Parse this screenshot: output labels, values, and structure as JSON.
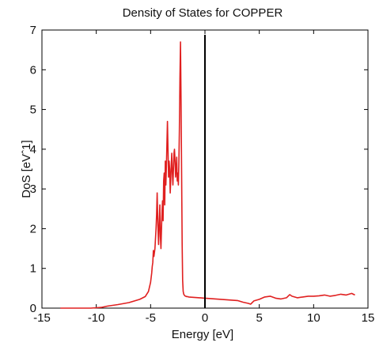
{
  "chart_data": {
    "type": "line",
    "title": "Density of States for COPPER",
    "xlabel": "Energy [eV]",
    "ylabel": "DoS [eVˆ1]",
    "xlim": [
      -15,
      15
    ],
    "ylim": [
      0,
      7
    ],
    "xticks": [
      -15,
      -10,
      -5,
      0,
      5,
      10,
      15
    ],
    "xtick_labels": [
      "-15",
      "-10",
      "-5",
      "0",
      "5",
      "10",
      "15"
    ],
    "yticks": [
      0,
      1,
      2,
      3,
      4,
      5,
      6,
      7
    ],
    "ytick_labels": [
      "0",
      "1",
      "2",
      "3",
      "4",
      "5",
      "6",
      "7"
    ],
    "grid": false,
    "reference_line": {
      "x": 0,
      "color": "#000000"
    },
    "series": [
      {
        "color": "#e02020",
        "x": [
          -13.3,
          -11.5,
          -10.5,
          -10.0,
          -9.5,
          -9.0,
          -8.0,
          -7.0,
          -6.0,
          -5.5,
          -5.2,
          -5.0,
          -4.9,
          -4.85,
          -4.8,
          -4.75,
          -4.7,
          -4.6,
          -4.5,
          -4.45,
          -4.4,
          -4.33,
          -4.27,
          -4.2,
          -4.15,
          -4.1,
          -4.05,
          -4.0,
          -3.95,
          -3.9,
          -3.85,
          -3.8,
          -3.75,
          -3.7,
          -3.65,
          -3.6,
          -3.55,
          -3.5,
          -3.45,
          -3.4,
          -3.35,
          -3.3,
          -3.25,
          -3.2,
          -3.15,
          -3.1,
          -3.05,
          -3.0,
          -2.95,
          -2.9,
          -2.85,
          -2.8,
          -2.75,
          -2.7,
          -2.65,
          -2.6,
          -2.55,
          -2.5,
          -2.45,
          -2.4,
          -2.35,
          -2.3,
          -2.25,
          -2.2,
          -2.15,
          -2.1,
          -2.05,
          -2.0,
          -1.95,
          -1.9,
          -1.85,
          -1.8,
          -1.75,
          -1.7,
          -1.6,
          -1.5,
          -1.0,
          -0.5,
          0.0,
          0.5,
          1.0,
          1.5,
          2.0,
          2.5,
          3.0,
          3.5,
          4.0,
          4.2,
          4.5,
          5.0,
          5.5,
          6.0,
          6.5,
          7.0,
          7.5,
          7.8,
          8.0,
          8.5,
          9.0,
          9.5,
          10.0,
          10.5,
          11.0,
          11.5,
          12.0,
          12.5,
          13.0,
          13.5,
          13.8
        ],
        "y": [
          0.0,
          0.0,
          0.0,
          0.01,
          0.02,
          0.05,
          0.09,
          0.14,
          0.22,
          0.29,
          0.42,
          0.65,
          0.88,
          1.05,
          1.15,
          1.45,
          1.3,
          1.5,
          2.0,
          2.35,
          2.9,
          2.1,
          1.6,
          2.2,
          2.6,
          1.8,
          1.5,
          2.0,
          2.45,
          2.7,
          2.2,
          3.2,
          3.4,
          2.6,
          3.7,
          3.1,
          3.5,
          4.1,
          4.7,
          4.0,
          3.3,
          3.7,
          3.5,
          2.9,
          3.2,
          3.6,
          3.9,
          3.4,
          3.1,
          3.5,
          3.9,
          4.0,
          3.7,
          3.3,
          3.5,
          3.8,
          3.2,
          3.4,
          3.1,
          3.6,
          4.5,
          5.8,
          6.7,
          5.2,
          3.4,
          1.6,
          0.7,
          0.42,
          0.35,
          0.33,
          0.31,
          0.3,
          0.3,
          0.29,
          0.29,
          0.28,
          0.27,
          0.26,
          0.25,
          0.24,
          0.23,
          0.22,
          0.21,
          0.2,
          0.19,
          0.15,
          0.12,
          0.1,
          0.18,
          0.22,
          0.28,
          0.3,
          0.25,
          0.23,
          0.26,
          0.34,
          0.3,
          0.26,
          0.28,
          0.3,
          0.3,
          0.31,
          0.33,
          0.3,
          0.32,
          0.35,
          0.33,
          0.37,
          0.33
        ]
      }
    ]
  }
}
